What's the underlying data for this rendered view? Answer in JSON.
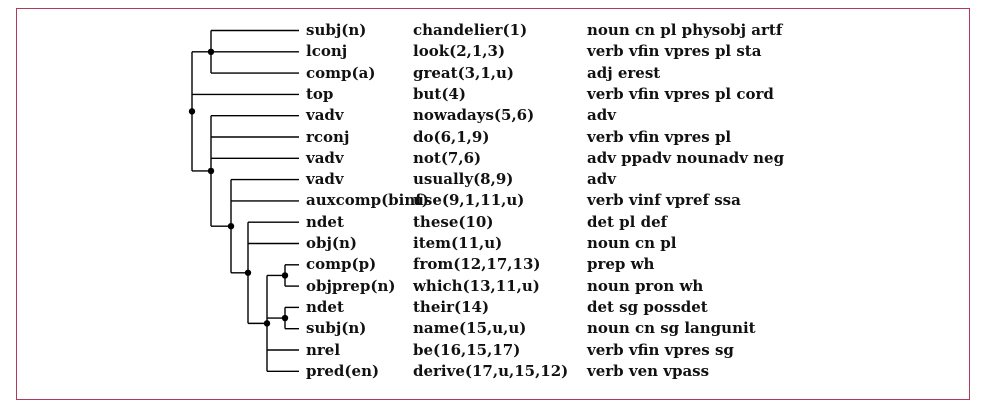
{
  "rows": [
    {
      "rel": "subj(n)",
      "word": "chandelier(1)",
      "tags": "noun cn pl physobj artf"
    },
    {
      "rel": "lconj",
      "word": "look(2,1,3)",
      "tags": "verb vfin vpres pl sta"
    },
    {
      "rel": "comp(a)",
      "word": "great(3,1,u)",
      "tags": "adj erest"
    },
    {
      "rel": "top",
      "word": "but(4)",
      "tags": "verb vfin vpres pl cord"
    },
    {
      "rel": "vadv",
      "word": "nowadays(5,6)",
      "tags": "adv"
    },
    {
      "rel": "rconj",
      "word": "do(6,1,9)",
      "tags": "verb vfin vpres pl"
    },
    {
      "rel": "vadv",
      "word": "not(7,6)",
      "tags": "adv ppadv nounadv neg"
    },
    {
      "rel": "vadv",
      "word": "usually(8,9)",
      "tags": "adv"
    },
    {
      "rel": "auxcomp(binf)",
      "word": "use(9,1,11,u)",
      "tags": "verb vinf vpref ssa"
    },
    {
      "rel": "ndet",
      "word": "these(10)",
      "tags": "det pl def"
    },
    {
      "rel": "obj(n)",
      "word": "item(11,u)",
      "tags": "noun cn pl"
    },
    {
      "rel": "comp(p)",
      "word": "from(12,17,13)",
      "tags": "prep wh"
    },
    {
      "rel": "objprep(n)",
      "word": "which(13,11,u)",
      "tags": "noun pron wh"
    },
    {
      "rel": "ndet",
      "word": "their(14)",
      "tags": "det sg possdet"
    },
    {
      "rel": "subj(n)",
      "word": "name(15,u,u)",
      "tags": "noun cn sg langunit"
    },
    {
      "rel": "nrel",
      "word": "be(16,15,17)",
      "tags": "verb vfin vpres sg"
    },
    {
      "rel": "pred(en)",
      "word": "derive(17,u,15,12)",
      "tags": "verb ven vpass"
    }
  ]
}
